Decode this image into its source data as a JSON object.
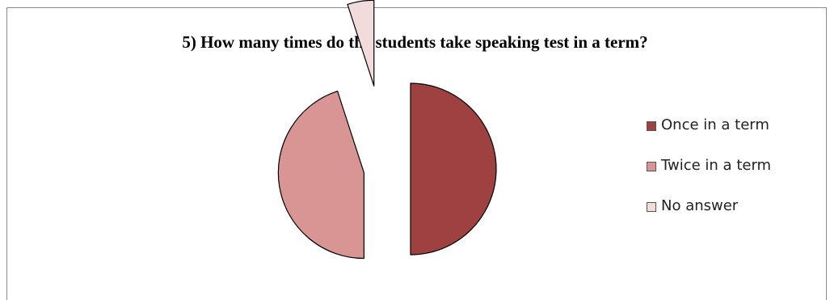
{
  "chart_data": {
    "type": "pie",
    "title": "5) How many times do the students take speaking test in a term?",
    "categories": [
      "Once in a term",
      "Twice in a term",
      "No answer"
    ],
    "values": [
      50,
      45,
      5
    ],
    "colors": [
      "#9f4140",
      "#d99594",
      "#f2dcdb"
    ],
    "legend_position": "right",
    "exploded": true
  }
}
